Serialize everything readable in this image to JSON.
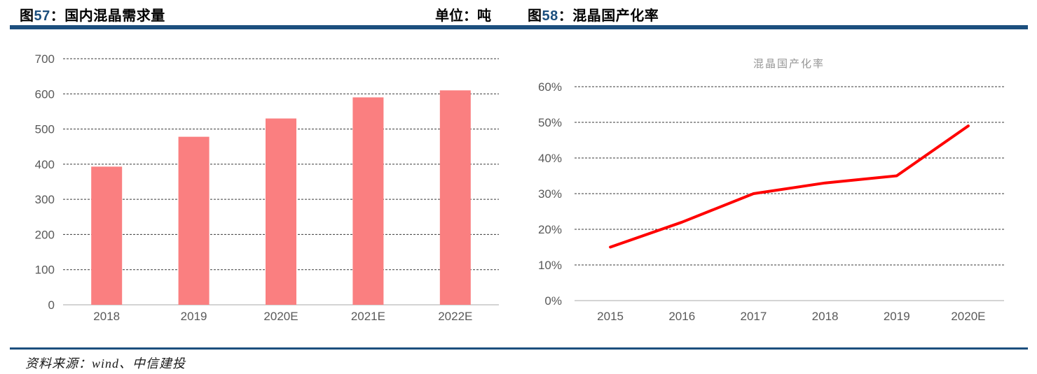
{
  "header": {
    "left": {
      "prefix": "图",
      "number": "57",
      "rest": "：国内混晶需求量"
    },
    "unit": "单位：吨",
    "right": {
      "prefix": "图",
      "number": "58",
      "rest": "：混晶国产化率"
    }
  },
  "footer": {
    "source": "资料来源：wind、中信建投"
  },
  "colors": {
    "accent": "#1C4F7E",
    "bar": "#FA7F80",
    "line": "#FF0000",
    "axis_text": "#595959",
    "inline_title": "#969696",
    "grid": "#3A3A3A",
    "baseline": "#C6C6C6"
  },
  "chart_data": [
    {
      "type": "bar",
      "title": "图57：国内混晶需求量",
      "unit": "单位：吨",
      "categories": [
        "2018",
        "2019",
        "2020E",
        "2021E",
        "2022E"
      ],
      "values": [
        393,
        478,
        530,
        590,
        610
      ],
      "ylabel": "",
      "xlabel": "",
      "ylim": [
        0,
        700
      ],
      "ytick_step": 100,
      "grid": true,
      "legend": "none"
    },
    {
      "type": "line",
      "title": "混晶国产化率",
      "categories": [
        "2015",
        "2016",
        "2017",
        "2018",
        "2019",
        "2020E"
      ],
      "values": [
        15,
        22,
        30,
        33,
        35,
        49
      ],
      "ylabel": "",
      "xlabel": "",
      "ylim": [
        0,
        60
      ],
      "ytick_step": 10,
      "ytick_format": "percent",
      "grid": true,
      "legend": "title-above-plot"
    }
  ]
}
